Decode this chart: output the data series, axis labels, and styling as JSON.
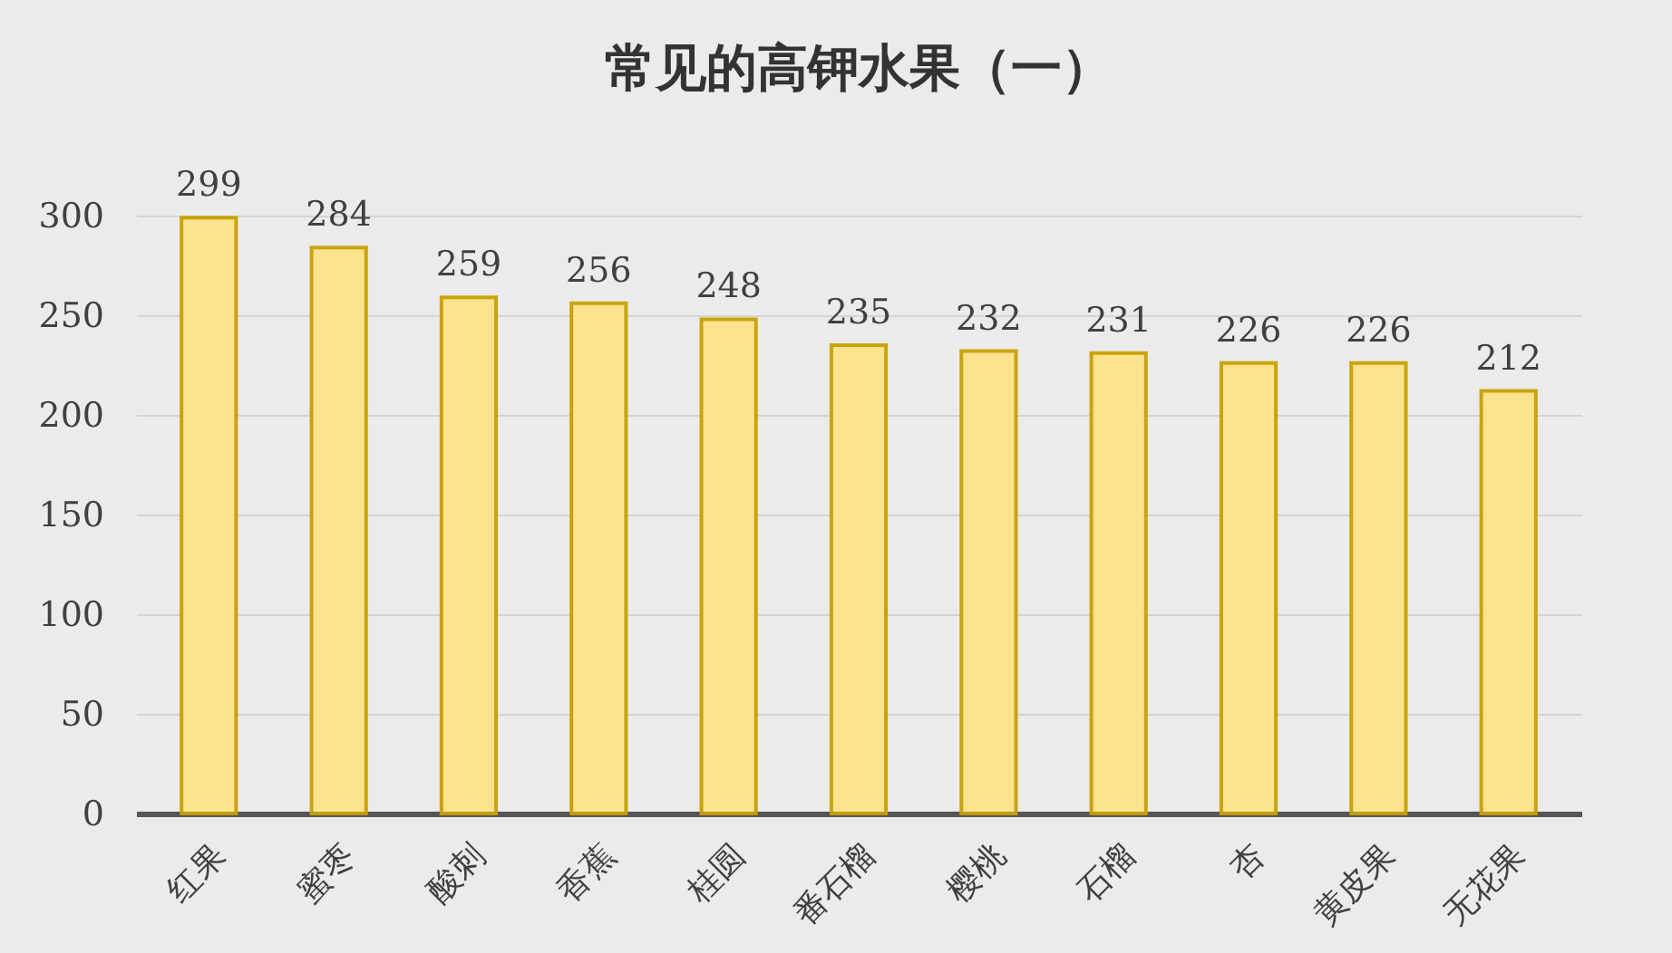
{
  "chart_data": {
    "type": "bar",
    "title": "常见的高钾水果（一）",
    "categories": [
      "红果",
      "蜜枣",
      "酸刺",
      "香蕉",
      "桂圆",
      "番石榴",
      "樱桃",
      "石榴",
      "杏",
      "黄皮果",
      "无花果"
    ],
    "values": [
      299,
      284,
      259,
      256,
      248,
      235,
      232,
      231,
      226,
      226,
      212
    ],
    "color": "#ffe38a",
    "ylim": [
      0,
      300
    ],
    "yticks": [
      0,
      50,
      100,
      150,
      200,
      250,
      300
    ],
    "grid": "y",
    "data_labels": true
  }
}
